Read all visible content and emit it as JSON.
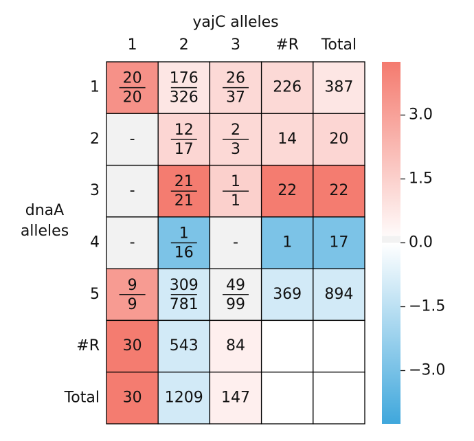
{
  "chart_data": {
    "type": "heatmap",
    "xlabel": "yajC alleles",
    "ylabel": "dnaA alleles",
    "x_categories": [
      "1",
      "2",
      "3",
      "#R",
      "Total"
    ],
    "y_categories": [
      "1",
      "2",
      "3",
      "4",
      "5",
      "#R",
      "Total"
    ],
    "cell_labels": [
      [
        [
          20,
          20
        ],
        [
          176,
          326
        ],
        [
          26,
          37
        ],
        226,
        387
      ],
      [
        "-",
        [
          12,
          17
        ],
        [
          2,
          3
        ],
        14,
        20
      ],
      [
        "-",
        [
          21,
          21
        ],
        [
          1,
          1
        ],
        22,
        22
      ],
      [
        "-",
        [
          1,
          16
        ],
        "-",
        1,
        17
      ],
      [
        [
          9,
          9
        ],
        [
          309,
          781
        ],
        [
          49,
          99
        ],
        369,
        894
      ],
      [
        30,
        543,
        84,
        null,
        null
      ],
      [
        30,
        1209,
        147,
        null,
        null
      ]
    ],
    "values": [
      [
        3.5,
        0.8,
        1.2,
        1.2,
        0.8
      ],
      [
        null,
        1.3,
        1.2,
        1.2,
        1.3
      ],
      [
        null,
        4.2,
        1.5,
        4.2,
        4.2
      ],
      [
        null,
        -2.9,
        null,
        -2.9,
        -2.9
      ],
      [
        3.2,
        -1.0,
        0,
        -1.0,
        -1.0
      ],
      [
        4.2,
        -1.0,
        0.5,
        null,
        null
      ],
      [
        4.2,
        -1.0,
        0.5,
        null,
        null
      ]
    ],
    "clim": [
      -4.25,
      4.25
    ],
    "cticks": [
      {
        "value": 3,
        "label": "3.0"
      },
      {
        "value": 1.5,
        "label": "1.5"
      },
      {
        "value": 0,
        "label": "0.0"
      },
      {
        "value": -1.5,
        "label": "−1.5"
      },
      {
        "value": -3,
        "label": "−3.0"
      }
    ],
    "colors": {
      "positive": "#f47a6e",
      "negative": "#3fa7dc",
      "zero": "#f2f2f2",
      "empty": "#ffffff"
    }
  }
}
